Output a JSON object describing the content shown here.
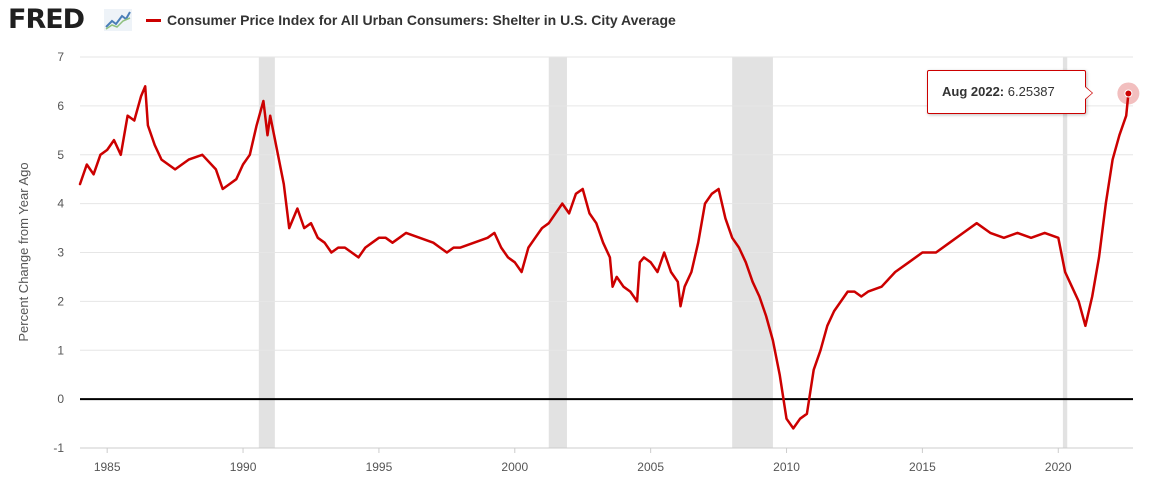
{
  "header": {
    "logo_text": "FRED",
    "logo_icon": "trend-line-icon",
    "legend_label": "Consumer Price Index for All Urban Consumers: Shelter in U.S. City Average"
  },
  "tooltip": {
    "date_label": "Aug 2022:",
    "value_label": "6.25387"
  },
  "colors": {
    "series": "#cc0000",
    "recession": "#e2e2e2",
    "zero_line": "#000000",
    "grid": "#e6e6e6",
    "text": "#555555"
  },
  "chart_data": {
    "type": "line",
    "ylabel": "Percent Change from Year Ago",
    "xlabel": "",
    "xlim": [
      1984.0,
      2022.75
    ],
    "ylim": [
      -1,
      7
    ],
    "x_ticks": [
      "1985",
      "1990",
      "1995",
      "2000",
      "2005",
      "2010",
      "2015",
      "2020"
    ],
    "y_ticks": [
      "7",
      "6",
      "5",
      "4",
      "3",
      "2",
      "1",
      "0",
      "-1"
    ],
    "grid": "horizontal",
    "legend": "top-left",
    "recessions": [
      [
        1990.58,
        1991.17
      ],
      [
        2001.25,
        2001.92
      ],
      [
        2008.0,
        2009.5
      ],
      [
        2020.17,
        2020.33
      ]
    ],
    "series": [
      {
        "name": "Consumer Price Index for All Urban Consumers: Shelter in U.S. City Average",
        "points": [
          [
            1984.0,
            4.4
          ],
          [
            1984.25,
            4.8
          ],
          [
            1984.5,
            4.6
          ],
          [
            1984.75,
            5.0
          ],
          [
            1985.0,
            5.1
          ],
          [
            1985.25,
            5.3
          ],
          [
            1985.5,
            5.0
          ],
          [
            1985.75,
            5.8
          ],
          [
            1986.0,
            5.7
          ],
          [
            1986.25,
            6.2
          ],
          [
            1986.4,
            6.4
          ],
          [
            1986.5,
            5.6
          ],
          [
            1986.75,
            5.2
          ],
          [
            1987.0,
            4.9
          ],
          [
            1987.5,
            4.7
          ],
          [
            1988.0,
            4.9
          ],
          [
            1988.5,
            5.0
          ],
          [
            1989.0,
            4.7
          ],
          [
            1989.25,
            4.3
          ],
          [
            1989.5,
            4.4
          ],
          [
            1989.75,
            4.5
          ],
          [
            1990.0,
            4.8
          ],
          [
            1990.25,
            5.0
          ],
          [
            1990.5,
            5.6
          ],
          [
            1990.75,
            6.1
          ],
          [
            1990.9,
            5.4
          ],
          [
            1991.0,
            5.8
          ],
          [
            1991.25,
            5.1
          ],
          [
            1991.5,
            4.4
          ],
          [
            1991.7,
            3.5
          ],
          [
            1992.0,
            3.9
          ],
          [
            1992.25,
            3.5
          ],
          [
            1992.5,
            3.6
          ],
          [
            1992.75,
            3.3
          ],
          [
            1993.0,
            3.2
          ],
          [
            1993.25,
            3.0
          ],
          [
            1993.5,
            3.1
          ],
          [
            1993.75,
            3.1
          ],
          [
            1994.0,
            3.0
          ],
          [
            1994.25,
            2.9
          ],
          [
            1994.5,
            3.1
          ],
          [
            1994.75,
            3.2
          ],
          [
            1995.0,
            3.3
          ],
          [
            1995.25,
            3.3
          ],
          [
            1995.5,
            3.2
          ],
          [
            1995.75,
            3.3
          ],
          [
            1996.0,
            3.4
          ],
          [
            1996.5,
            3.3
          ],
          [
            1997.0,
            3.2
          ],
          [
            1997.25,
            3.1
          ],
          [
            1997.5,
            3.0
          ],
          [
            1997.75,
            3.1
          ],
          [
            1998.0,
            3.1
          ],
          [
            1998.5,
            3.2
          ],
          [
            1999.0,
            3.3
          ],
          [
            1999.25,
            3.4
          ],
          [
            1999.5,
            3.1
          ],
          [
            1999.75,
            2.9
          ],
          [
            2000.0,
            2.8
          ],
          [
            2000.25,
            2.6
          ],
          [
            2000.5,
            3.1
          ],
          [
            2000.75,
            3.3
          ],
          [
            2001.0,
            3.5
          ],
          [
            2001.25,
            3.6
          ],
          [
            2001.5,
            3.8
          ],
          [
            2001.75,
            4.0
          ],
          [
            2002.0,
            3.8
          ],
          [
            2002.25,
            4.2
          ],
          [
            2002.5,
            4.3
          ],
          [
            2002.75,
            3.8
          ],
          [
            2003.0,
            3.6
          ],
          [
            2003.25,
            3.2
          ],
          [
            2003.5,
            2.9
          ],
          [
            2003.6,
            2.3
          ],
          [
            2003.75,
            2.5
          ],
          [
            2004.0,
            2.3
          ],
          [
            2004.25,
            2.2
          ],
          [
            2004.5,
            2.0
          ],
          [
            2004.6,
            2.8
          ],
          [
            2004.75,
            2.9
          ],
          [
            2005.0,
            2.8
          ],
          [
            2005.25,
            2.6
          ],
          [
            2005.5,
            3.0
          ],
          [
            2005.75,
            2.6
          ],
          [
            2006.0,
            2.4
          ],
          [
            2006.1,
            1.9
          ],
          [
            2006.25,
            2.3
          ],
          [
            2006.5,
            2.6
          ],
          [
            2006.75,
            3.2
          ],
          [
            2007.0,
            4.0
          ],
          [
            2007.25,
            4.2
          ],
          [
            2007.5,
            4.3
          ],
          [
            2007.75,
            3.7
          ],
          [
            2008.0,
            3.3
          ],
          [
            2008.25,
            3.1
          ],
          [
            2008.5,
            2.8
          ],
          [
            2008.75,
            2.4
          ],
          [
            2009.0,
            2.1
          ],
          [
            2009.25,
            1.7
          ],
          [
            2009.5,
            1.2
          ],
          [
            2009.75,
            0.5
          ],
          [
            2010.0,
            -0.4
          ],
          [
            2010.25,
            -0.6
          ],
          [
            2010.5,
            -0.4
          ],
          [
            2010.75,
            -0.3
          ],
          [
            2011.0,
            0.6
          ],
          [
            2011.25,
            1.0
          ],
          [
            2011.5,
            1.5
          ],
          [
            2011.75,
            1.8
          ],
          [
            2012.0,
            2.0
          ],
          [
            2012.25,
            2.2
          ],
          [
            2012.5,
            2.2
          ],
          [
            2012.75,
            2.1
          ],
          [
            2013.0,
            2.2
          ],
          [
            2013.5,
            2.3
          ],
          [
            2014.0,
            2.6
          ],
          [
            2014.5,
            2.8
          ],
          [
            2015.0,
            3.0
          ],
          [
            2015.5,
            3.0
          ],
          [
            2016.0,
            3.2
          ],
          [
            2016.5,
            3.4
          ],
          [
            2017.0,
            3.6
          ],
          [
            2017.5,
            3.4
          ],
          [
            2018.0,
            3.3
          ],
          [
            2018.5,
            3.4
          ],
          [
            2019.0,
            3.3
          ],
          [
            2019.5,
            3.4
          ],
          [
            2020.0,
            3.3
          ],
          [
            2020.25,
            2.6
          ],
          [
            2020.5,
            2.3
          ],
          [
            2020.75,
            2.0
          ],
          [
            2021.0,
            1.5
          ],
          [
            2021.25,
            2.1
          ],
          [
            2021.5,
            2.9
          ],
          [
            2021.75,
            4.0
          ],
          [
            2022.0,
            4.9
          ],
          [
            2022.25,
            5.4
          ],
          [
            2022.5,
            5.8
          ],
          [
            2022.58,
            6.25387
          ]
        ]
      }
    ],
    "highlight": {
      "x": 2022.58,
      "y": 6.25387
    }
  }
}
